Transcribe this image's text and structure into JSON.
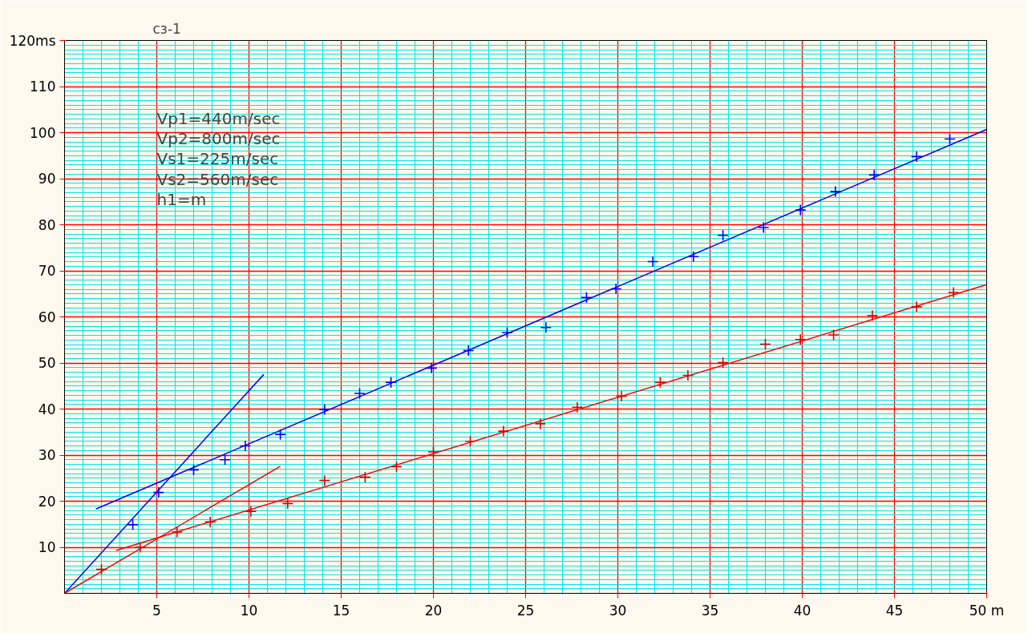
{
  "chart_data": {
    "type": "scatter",
    "xlim": [
      0,
      50
    ],
    "ylim": [
      0,
      120
    ],
    "xticks": [
      5,
      10,
      15,
      20,
      25,
      30,
      35,
      40,
      45,
      {
        "value": 50,
        "label": "50 m"
      }
    ],
    "yticks": [
      10,
      20,
      30,
      40,
      50,
      60,
      70,
      80,
      90,
      100,
      110,
      {
        "value": 120,
        "label": "120ms"
      }
    ],
    "grid": true,
    "annotations": [
      "сз-1",
      "Vp1=440m/sec",
      "Vp2=800m/sec",
      "Vs1=225m/sec",
      "Vs2=560m/sec",
      "h1=m"
    ],
    "series": [
      {
        "marker": "cross",
        "color": "#0000ff",
        "x": [
          3.7,
          5.1,
          7.0,
          8.7,
          9.8,
          11.7,
          14.1,
          16.0,
          17.7,
          19.9,
          21.9,
          24.0,
          26.1,
          28.3,
          29.9,
          31.9,
          34.1,
          35.7,
          37.9,
          39.9,
          41.8,
          43.9,
          46.2,
          48.0
        ],
        "values": [
          14.9,
          21.9,
          26.8,
          29.0,
          32.0,
          34.5,
          39.9,
          43.4,
          45.8,
          48.9,
          52.7,
          56.6,
          57.7,
          64.2,
          66.1,
          72.0,
          73.1,
          77.7,
          79.4,
          83.2,
          87.2,
          90.8,
          94.8,
          98.6
        ]
      },
      {
        "marker": "cross",
        "color": "#e00000",
        "x": [
          2.0,
          4.1,
          6.1,
          7.9,
          10.1,
          12.1,
          14.1,
          16.3,
          18.0,
          20.0,
          22.0,
          23.8,
          25.8,
          27.8,
          30.2,
          32.3,
          33.8,
          35.7,
          38.0,
          39.9,
          41.7,
          43.8,
          46.2,
          48.2
        ],
        "values": [
          5.2,
          10.0,
          13.3,
          15.5,
          17.8,
          19.5,
          24.5,
          25.2,
          27.5,
          30.7,
          33.0,
          35.2,
          36.8,
          40.4,
          42.8,
          45.8,
          47.3,
          50.1,
          54.1,
          55.1,
          56.1,
          60.3,
          62.2,
          65.3
        ]
      },
      {
        "type": "line",
        "color": "#0000ff",
        "x": [
          0,
          10.8
        ],
        "values": [
          0,
          47.5
        ]
      },
      {
        "type": "line",
        "color": "#0000ff",
        "x": [
          1.7,
          50
        ],
        "values": [
          18.3,
          100.7
        ]
      },
      {
        "type": "line",
        "color": "#ff0000",
        "x": [
          0,
          11.7
        ],
        "values": [
          0,
          27.6
        ]
      },
      {
        "type": "line",
        "color": "#ff0000",
        "x": [
          2.8,
          50
        ],
        "values": [
          9.3,
          67.0
        ]
      }
    ]
  }
}
